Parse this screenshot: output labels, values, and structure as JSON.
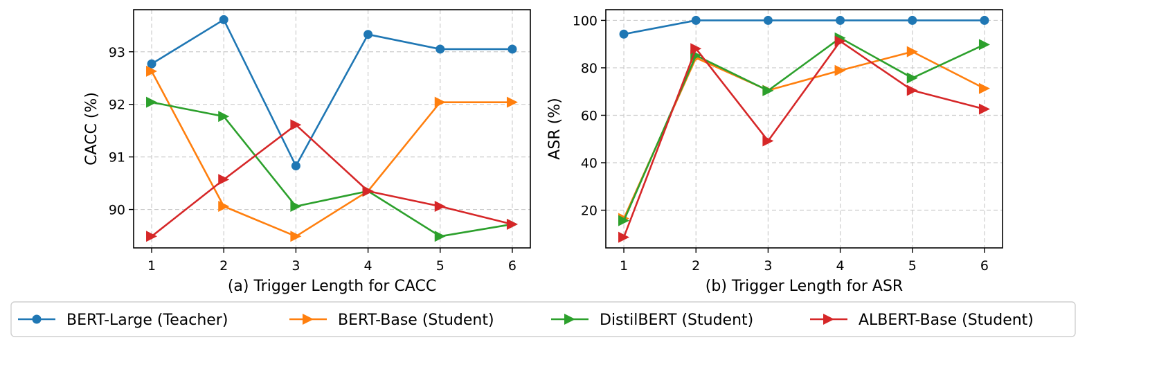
{
  "colors": {
    "bert_large": "#1f77b4",
    "bert_base": "#ff7f0e",
    "distilbert": "#2ca02c",
    "albert_base": "#d62728",
    "grid": "#cccccc",
    "axes": "#000000"
  },
  "legend": {
    "placement": "bottom-center",
    "entries": [
      {
        "label": "BERT-Large (Teacher)",
        "color": "#1f77b4",
        "marker": "circle"
      },
      {
        "label": "BERT-Base (Student)",
        "color": "#ff7f0e",
        "marker": "triangle-right"
      },
      {
        "label": "DistilBERT (Student)",
        "color": "#2ca02c",
        "marker": "triangle-right"
      },
      {
        "label": "ALBERT-Base (Student)",
        "color": "#d62728",
        "marker": "triangle-right"
      }
    ]
  },
  "chart_data": [
    {
      "type": "line",
      "xlabel": "(a) Trigger Length for CACC",
      "ylabel": "CACC (%)",
      "x": [
        1,
        2,
        3,
        4,
        5,
        6
      ],
      "xticks": [
        "1",
        "2",
        "3",
        "4",
        "5",
        "6"
      ],
      "yticks": [
        90,
        91,
        92,
        93
      ],
      "xlim": [
        0.75,
        6.25
      ],
      "ylim": [
        89.27,
        93.8
      ],
      "grid": true,
      "series": [
        {
          "name": "BERT-Large (Teacher)",
          "color": "#1f77b4",
          "marker": "circle",
          "values": [
            92.77,
            93.61,
            90.83,
            93.33,
            93.05,
            93.05
          ]
        },
        {
          "name": "BERT-Base (Student)",
          "color": "#ff7f0e",
          "marker": "triangle-right",
          "values": [
            92.63,
            90.06,
            89.49,
            90.35,
            92.04,
            92.04
          ]
        },
        {
          "name": "DistilBERT (Student)",
          "color": "#2ca02c",
          "marker": "triangle-right",
          "values": [
            92.04,
            91.77,
            90.06,
            90.35,
            89.49,
            89.72
          ]
        },
        {
          "name": "ALBERT-Base (Student)",
          "color": "#d62728",
          "marker": "triangle-right",
          "values": [
            89.49,
            90.57,
            91.61,
            90.35,
            90.06,
            89.72
          ]
        }
      ]
    },
    {
      "type": "line",
      "xlabel": "(b) Trigger Length for ASR",
      "ylabel": "ASR (%)",
      "x": [
        1,
        2,
        3,
        4,
        5,
        6
      ],
      "xticks": [
        "1",
        "2",
        "3",
        "4",
        "5",
        "6"
      ],
      "yticks": [
        20,
        40,
        60,
        80,
        100
      ],
      "xlim": [
        0.75,
        6.25
      ],
      "ylim": [
        4.1,
        104.5
      ],
      "grid": true,
      "series": [
        {
          "name": "BERT-Large (Teacher)",
          "color": "#1f77b4",
          "marker": "circle",
          "values": [
            94.2,
            100,
            100,
            100,
            100,
            100
          ]
        },
        {
          "name": "BERT-Base (Student)",
          "color": "#ff7f0e",
          "marker": "triangle-right",
          "values": [
            16.5,
            84.2,
            70.5,
            78.9,
            86.8,
            71.3
          ]
        },
        {
          "name": "DistilBERT (Student)",
          "color": "#2ca02c",
          "marker": "triangle-right",
          "values": [
            15.6,
            85.2,
            70.4,
            92.6,
            75.7,
            89.8
          ]
        },
        {
          "name": "ALBERT-Base (Student)",
          "color": "#d62728",
          "marker": "triangle-right",
          "values": [
            8.6,
            88.1,
            49.2,
            91.2,
            70.5,
            62.6
          ]
        }
      ]
    }
  ]
}
